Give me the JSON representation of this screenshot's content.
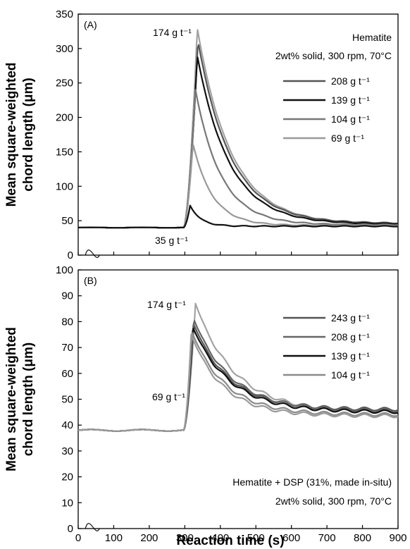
{
  "figure": {
    "xlabel": "Reaction time (s)"
  },
  "chart_data": [
    {
      "type": "line",
      "panel": "(A)",
      "ylabel": [
        "Mean square-weighted",
        "chord length (μm)"
      ],
      "xlabel": "",
      "xlim": [
        0,
        900
      ],
      "ylim": [
        0,
        350
      ],
      "yticks": [
        0,
        50,
        100,
        150,
        200,
        250,
        300,
        350
      ],
      "axis_break": true,
      "grid": false,
      "legend_position": "right",
      "notes": [
        "Hematite",
        "2wt% solid, 300 rpm, 70°C"
      ],
      "annotations": [
        "174 g t⁻¹",
        "35 g t⁻¹"
      ],
      "legend": [
        {
          "label": "208 g t⁻¹",
          "color": "#555555"
        },
        {
          "label": "139 g t⁻¹",
          "color": "#111111"
        },
        {
          "label": "104 g t⁻¹",
          "color": "#777777"
        },
        {
          "label": "69 g t⁻¹",
          "color": "#999999"
        }
      ],
      "series": [
        {
          "name": "174 g t⁻¹",
          "color": "#a3a3a3",
          "baseline": 40,
          "peak_x": 335,
          "peak": 330,
          "tau": 95,
          "end": 45
        },
        {
          "name": "208 g t⁻¹",
          "color": "#555555",
          "baseline": 40,
          "peak_x": 337,
          "peak": 311,
          "tau": 92,
          "end": 46
        },
        {
          "name": "139 g t⁻¹",
          "color": "#111111",
          "baseline": 40,
          "peak_x": 335,
          "peak": 290,
          "tau": 90,
          "end": 45
        },
        {
          "name": "104 g t⁻¹",
          "color": "#777777",
          "baseline": 40,
          "peak_x": 330,
          "peak": 240,
          "tau": 72,
          "end": 44
        },
        {
          "name": "69 g t⁻¹",
          "color": "#999999",
          "baseline": 40,
          "peak_x": 323,
          "peak": 162,
          "tau": 55,
          "end": 43
        },
        {
          "name": "35 g t⁻¹",
          "color": "#111111",
          "baseline": 40,
          "peak_x": 315,
          "peak": 72,
          "tau": 30,
          "end": 42
        }
      ]
    },
    {
      "type": "line",
      "panel": "(B)",
      "ylabel": [
        "Mean square-weighted",
        "chord length (μm)"
      ],
      "xlabel": "Reaction time (s)",
      "xlim": [
        0,
        900
      ],
      "ylim": [
        0,
        100
      ],
      "xticks": [
        0,
        100,
        200,
        300,
        400,
        500,
        600,
        700,
        800,
        900
      ],
      "yticks": [
        0,
        10,
        20,
        30,
        40,
        50,
        60,
        70,
        80,
        90,
        100
      ],
      "axis_break": true,
      "grid": false,
      "legend_position": "top-right",
      "notes": [
        "Hematite + DSP (31%, made in-situ)",
        "2wt% solid, 300 rpm, 70°C"
      ],
      "annotations": [
        "174 g t⁻¹",
        "69 g t⁻¹"
      ],
      "legend": [
        {
          "label": "243 g t⁻¹",
          "color": "#555555"
        },
        {
          "label": "208 g t⁻¹",
          "color": "#666666"
        },
        {
          "label": "139 g t⁻¹",
          "color": "#111111"
        },
        {
          "label": "104 g t⁻¹",
          "color": "#8a8a8a"
        }
      ],
      "series": [
        {
          "name": "174 g t⁻¹",
          "color": "#a3a3a3",
          "baseline": 38,
          "peak_x": 330,
          "peak": 87,
          "tau": 110,
          "end": 45
        },
        {
          "name": "243 g t⁻¹",
          "color": "#555555",
          "baseline": 38,
          "peak_x": 325,
          "peak": 79,
          "tau": 100,
          "end": 46
        },
        {
          "name": "208 g t⁻¹",
          "color": "#666666",
          "baseline": 38,
          "peak_x": 325,
          "peak": 81,
          "tau": 105,
          "end": 45.5
        },
        {
          "name": "139 g t⁻¹",
          "color": "#111111",
          "baseline": 38,
          "peak_x": 322,
          "peak": 78,
          "tau": 105,
          "end": 45
        },
        {
          "name": "104 g t⁻¹",
          "color": "#8a8a8a",
          "baseline": 38,
          "peak_x": 320,
          "peak": 76,
          "tau": 95,
          "end": 44
        },
        {
          "name": "69 g t⁻¹",
          "color": "#9a9a9a",
          "baseline": 38,
          "peak_x": 318,
          "peak": 75,
          "tau": 90,
          "end": 43.5
        }
      ]
    }
  ]
}
